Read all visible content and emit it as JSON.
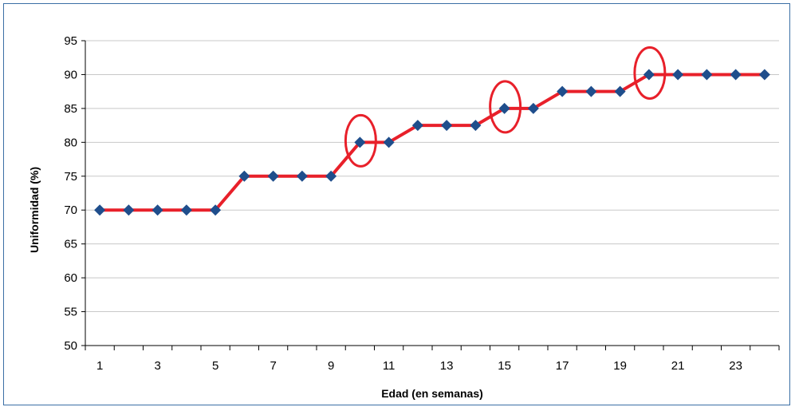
{
  "chart_data": {
    "type": "line",
    "title": "",
    "xlabel": "Edad (en semanas)",
    "ylabel": "Uniformidad (%)",
    "x": [
      1,
      2,
      3,
      4,
      5,
      6,
      7,
      8,
      9,
      10,
      11,
      12,
      13,
      14,
      15,
      16,
      17,
      18,
      19,
      20,
      21,
      22,
      23,
      24
    ],
    "x_tick_labels": [
      "1",
      "3",
      "5",
      "7",
      "9",
      "11",
      "13",
      "15",
      "17",
      "19",
      "21",
      "23"
    ],
    "series": [
      {
        "values": [
          70,
          70,
          70,
          70,
          70,
          75,
          75,
          75,
          75,
          80,
          80,
          82.5,
          82.5,
          82.5,
          85,
          85,
          87.5,
          87.5,
          87.5,
          90,
          90,
          90,
          90,
          90
        ]
      }
    ],
    "ylim": [
      50,
      95
    ],
    "y_ticks": [
      50,
      55,
      60,
      65,
      70,
      75,
      80,
      85,
      90,
      95
    ],
    "grid": true,
    "legend": "none",
    "highlighted_x": [
      10,
      15,
      20
    ],
    "colors": {
      "line": "#e8202a",
      "marker": "#1f4e8c",
      "highlight": "#e8202a",
      "grid": "#c8c8c8",
      "frame": "#3a6ea5"
    }
  }
}
